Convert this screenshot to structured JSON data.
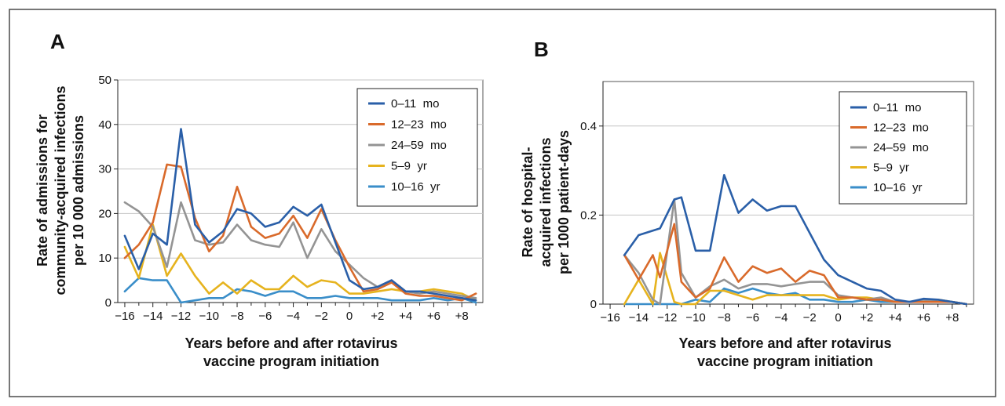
{
  "figure": {
    "xlabel_line1": "Years before and after rotavirus",
    "xlabel_line2": "vaccine program initiation"
  },
  "chart_data": [
    {
      "panel": "A",
      "type": "line",
      "ylabel_lines": [
        "Rate of admissions for",
        "community-acquired infections",
        "per 10 000 admissions"
      ],
      "xlabel_lines": [
        "Years before and after rotavirus",
        "vaccine program initiation"
      ],
      "xlim": [
        -16.5,
        9.5
      ],
      "ylim": [
        0,
        50
      ],
      "xticks": [
        -16,
        -14,
        -12,
        -10,
        -8,
        -6,
        -4,
        -2,
        0,
        2,
        4,
        6,
        8
      ],
      "xtick_labels": [
        "−16",
        "−14",
        "−12",
        "−10",
        "−8",
        "−6",
        "−4",
        "−2",
        "0",
        "+2",
        "+4",
        "+6",
        "+8"
      ],
      "yticks": [
        0,
        10,
        20,
        30,
        40,
        50
      ],
      "ytick_labels": [
        "0",
        "10",
        "20",
        "30",
        "40",
        "50"
      ],
      "grid": true,
      "legend_position": "top-right",
      "x": [
        -16,
        -15,
        -14,
        -13,
        -12,
        -11,
        -10,
        -9,
        -8,
        -7,
        -6,
        -5,
        -4,
        -3,
        -2,
        -1,
        0,
        1,
        2,
        3,
        4,
        5,
        6,
        7,
        8,
        9
      ],
      "series": [
        {
          "name": "0–11  mo",
          "color": "#2a5fa8",
          "values": [
            15,
            7.5,
            15.5,
            13,
            39,
            17.5,
            13.5,
            16,
            21,
            20,
            17,
            18,
            21.5,
            19.5,
            22,
            13.5,
            5,
            3,
            3.5,
            5,
            2.5,
            2.5,
            2,
            1.5,
            1,
            0.5
          ]
        },
        {
          "name": "12–23  mo",
          "color": "#d96a2b",
          "values": [
            10,
            13,
            18,
            31,
            30.5,
            19,
            11.5,
            15,
            26,
            17,
            14.5,
            15.5,
            19.5,
            14.5,
            21,
            14,
            8,
            2.5,
            3,
            4.5,
            2,
            1.5,
            1.5,
            1,
            0.5,
            2
          ]
        },
        {
          "name": "24–59  mo",
          "color": "#949494",
          "values": [
            22.5,
            20.5,
            17,
            8,
            22.5,
            14,
            13,
            13.5,
            17.5,
            14,
            13,
            12.5,
            18,
            10,
            16.5,
            11.5,
            8.5,
            5.5,
            3.5,
            5,
            2.5,
            2,
            2.5,
            2,
            1.5,
            1
          ]
        },
        {
          "name": "5–9  yr",
          "color": "#e6b31e",
          "values": [
            12.5,
            5.5,
            17.5,
            6,
            11,
            6,
            2,
            4.5,
            2,
            5,
            3,
            3,
            6,
            3.5,
            5,
            4.5,
            2,
            2,
            2.5,
            3,
            2.5,
            2.5,
            3,
            2.5,
            2,
            0.5
          ]
        },
        {
          "name": "10–16  yr",
          "color": "#3a8ec9",
          "values": [
            2.5,
            5.5,
            5,
            5,
            0,
            0.5,
            1,
            1,
            3,
            2.5,
            1.5,
            2.5,
            2.5,
            1,
            1,
            1.5,
            1,
            1,
            1,
            0.5,
            0.5,
            0.5,
            1,
            0.5,
            1,
            0
          ]
        }
      ]
    },
    {
      "panel": "B",
      "type": "line",
      "ylabel_lines": [
        "Rate of hospital-",
        "acquired infections",
        "per 1000 patient-days"
      ],
      "xlabel_lines": [
        "Years before and after rotavirus",
        "vaccine program initiation"
      ],
      "xlim": [
        -16.5,
        9.5
      ],
      "ylim": [
        0,
        0.5
      ],
      "xticks": [
        -16,
        -14,
        -12,
        -10,
        -8,
        -6,
        -4,
        -2,
        0,
        2,
        4,
        6,
        8
      ],
      "xtick_labels": [
        "−16",
        "−14",
        "−12",
        "−10",
        "−8",
        "−6",
        "−4",
        "−2",
        "0",
        "+2",
        "+4",
        "+6",
        "+8"
      ],
      "yticks": [
        0,
        0.2,
        0.4
      ],
      "ytick_labels": [
        "0",
        "0.2",
        "0.4"
      ],
      "grid": true,
      "legend_position": "top-right",
      "x": [
        -15,
        -14,
        -13,
        -12.5,
        -11.5,
        -11,
        -10,
        -9,
        -8,
        -7,
        -6,
        -5,
        -4,
        -3,
        -2,
        -1,
        0,
        1,
        2,
        3,
        4,
        5,
        6,
        7,
        8,
        9
      ],
      "series": [
        {
          "name": "0–11  mo",
          "color": "#2a5fa8",
          "values": [
            0.11,
            0.155,
            0.165,
            0.17,
            0.235,
            0.24,
            0.12,
            0.12,
            0.29,
            0.205,
            0.235,
            0.21,
            0.22,
            0.22,
            0.16,
            0.1,
            0.065,
            0.05,
            0.035,
            0.03,
            0.01,
            0.005,
            0.012,
            0.01,
            0.005,
            0
          ]
        },
        {
          "name": "12–23  mo",
          "color": "#d96a2b",
          "values": [
            0.11,
            0.055,
            0.11,
            0.06,
            0.18,
            0.05,
            0.015,
            0.035,
            0.105,
            0.05,
            0.085,
            0.07,
            0.08,
            0.05,
            0.075,
            0.065,
            0.015,
            0.015,
            0.01,
            0.01,
            0.005,
            0.005,
            0.005,
            0.005,
            0.005,
            0
          ]
        },
        {
          "name": "24–59  mo",
          "color": "#949494",
          "values": [
            0.11,
            0.07,
            0.01,
            0,
            0.235,
            0.07,
            0.015,
            0.04,
            0.055,
            0.035,
            0.045,
            0.045,
            0.04,
            0.045,
            0.05,
            0.05,
            0.02,
            0.015,
            0.01,
            0.015,
            0.005,
            0.005,
            0.01,
            0.005,
            0.005,
            0
          ]
        },
        {
          "name": "5–9  yr",
          "color": "#e6b31e",
          "values": [
            0,
            0.055,
            0,
            0.115,
            0.005,
            0,
            0,
            0.03,
            0.03,
            0.02,
            0.01,
            0.02,
            0.02,
            0.02,
            0.02,
            0.02,
            0.01,
            0.015,
            0.015,
            0.01,
            0.005,
            0.005,
            0.005,
            0.01,
            0.005,
            0
          ]
        },
        {
          "name": "10–16  yr",
          "color": "#3a8ec9",
          "values": [
            0,
            0,
            0,
            0,
            0,
            0,
            0.01,
            0.005,
            0.035,
            0.025,
            0.035,
            0.025,
            0.02,
            0.025,
            0.01,
            0.01,
            0.005,
            0.005,
            0.01,
            0.005,
            0.005,
            0.005,
            0.005,
            0.005,
            0.005,
            0
          ]
        }
      ]
    }
  ]
}
